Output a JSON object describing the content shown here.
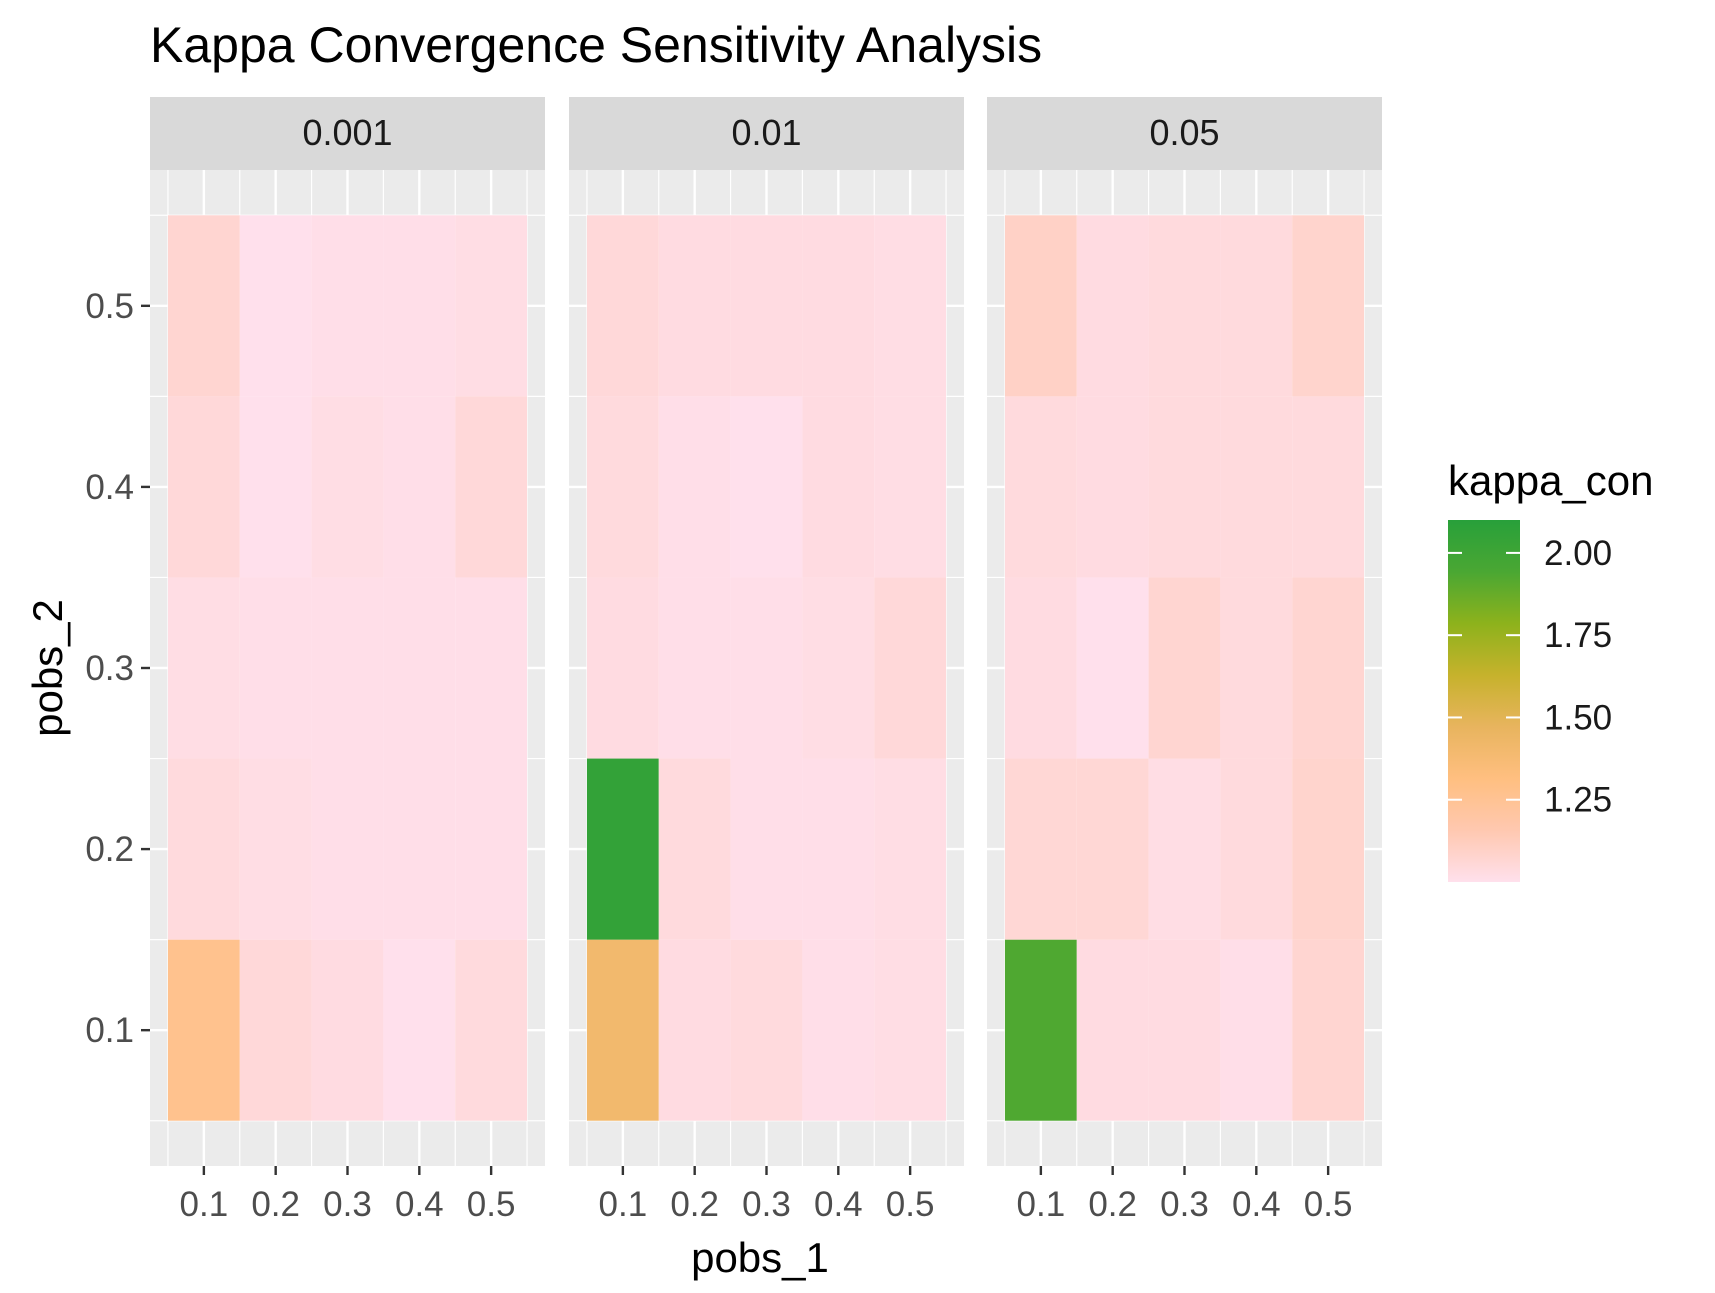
{
  "chart_data": {
    "type": "heatmap",
    "title": "Kappa Convergence Sensitivity Analysis",
    "xlabel": "pobs_1",
    "ylabel": "pobs_2",
    "x": [
      0.1,
      0.2,
      0.3,
      0.4,
      0.5
    ],
    "y": [
      0.1,
      0.2,
      0.3,
      0.4,
      0.5
    ],
    "x_tick_labels": [
      "0.1",
      "0.2",
      "0.3",
      "0.4",
      "0.5"
    ],
    "y_tick_labels": [
      "0.1",
      "0.2",
      "0.3",
      "0.4",
      "0.5"
    ],
    "facets": [
      {
        "label": "0.001",
        "values": [
          [
            1.27,
            1.05,
            1.03,
            1.0,
            1.04
          ],
          [
            1.04,
            1.02,
            1.01,
            1.01,
            1.01
          ],
          [
            1.02,
            1.01,
            1.01,
            1.01,
            1.01
          ],
          [
            1.05,
            1.0,
            1.02,
            1.01,
            1.05
          ],
          [
            1.07,
            1.0,
            1.01,
            1.01,
            1.02
          ]
        ]
      },
      {
        "label": "0.01",
        "values": [
          [
            1.4,
            1.03,
            1.04,
            1.01,
            1.02
          ],
          [
            2.05,
            1.04,
            1.01,
            1.01,
            1.02
          ],
          [
            1.03,
            1.01,
            1.01,
            1.02,
            1.05
          ],
          [
            1.04,
            1.01,
            1.0,
            1.03,
            1.02
          ],
          [
            1.05,
            1.03,
            1.03,
            1.03,
            1.02
          ]
        ]
      },
      {
        "label": "0.05",
        "values": [
          [
            1.93,
            1.03,
            1.03,
            1.01,
            1.07
          ],
          [
            1.06,
            1.06,
            1.02,
            1.04,
            1.08
          ],
          [
            1.03,
            1.0,
            1.07,
            1.04,
            1.07
          ],
          [
            1.04,
            1.03,
            1.04,
            1.04,
            1.04
          ],
          [
            1.1,
            1.03,
            1.04,
            1.04,
            1.08
          ]
        ]
      }
    ],
    "fill_scale": {
      "name": "kappa_con",
      "range": [
        1.0,
        2.1
      ],
      "breaks": [
        2.0,
        1.75,
        1.5,
        1.25
      ],
      "break_labels": [
        "2.00",
        "1.75",
        "1.50",
        "1.25"
      ],
      "colors": [
        "#ffe0ec",
        "#ffc8b0",
        "#ffbf80",
        "#e8b45e",
        "#c6b22c",
        "#8db21c",
        "#4aa733",
        "#28a03a"
      ]
    },
    "panel_background": "#ebebeb",
    "strip_background": "#d9d9d9",
    "grid": true,
    "legend": "right"
  }
}
